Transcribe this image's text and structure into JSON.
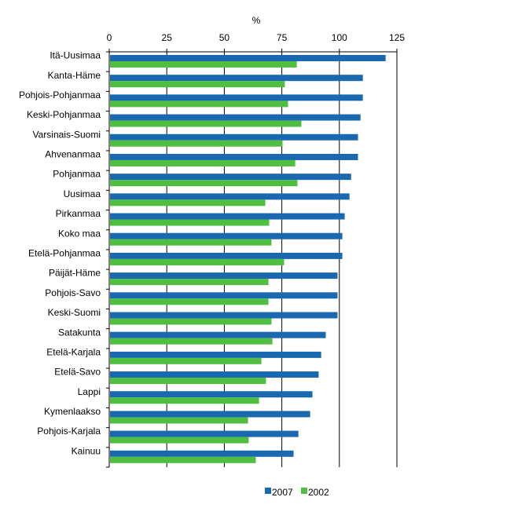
{
  "chart_data": {
    "type": "bar",
    "orientation": "horizontal",
    "title": "",
    "xlabel": "%",
    "ylabel": "",
    "xlim": [
      0,
      125
    ],
    "xticks": [
      0,
      25,
      50,
      75,
      100,
      125
    ],
    "xtick_labels": [
      "0",
      "25",
      "50",
      "75",
      "100",
      "125"
    ],
    "axis_position": "top",
    "grid": "vertical",
    "legend_position": "bottom",
    "categories": [
      "Itä-Uusimaa",
      "Kanta-Häme",
      "Pohjois-Pohjanmaa",
      "Keski-Pohjanmaa",
      "Varsinais-Suomi",
      "Ahvenanmaa",
      "Pohjanmaa",
      "Uusimaa",
      "Pirkanmaa",
      "Koko maa",
      "Etelä-Pohjanmaa",
      "Päijät-Häme",
      "Pohjois-Savo",
      "Keski-Suomi",
      "Satakunta",
      "Etelä-Karjala",
      "Etelä-Savo",
      "Lappi",
      "Kymenlaakso",
      "Pohjois-Karjala",
      "Kainuu"
    ],
    "series": [
      {
        "name": "2007",
        "color": "#1a69b0",
        "values": [
          120.1,
          110.2,
          110.2,
          109.2,
          108.1,
          108.1,
          105.1,
          104.4,
          102.3,
          101.3,
          101.3,
          99.2,
          99.2,
          99.2,
          94.1,
          92.1,
          91.0,
          88.3,
          87.3,
          82.2,
          80.1
        ]
      },
      {
        "name": "2002",
        "color": "#50be41",
        "values": [
          81.5,
          76.3,
          77.7,
          83.5,
          75.3,
          80.8,
          81.8,
          67.8,
          69.5,
          70.5,
          76.0,
          69.2,
          69.2,
          70.5,
          70.9,
          66.1,
          68.1,
          65.1,
          60.3,
          60.6,
          63.7
        ]
      }
    ]
  }
}
